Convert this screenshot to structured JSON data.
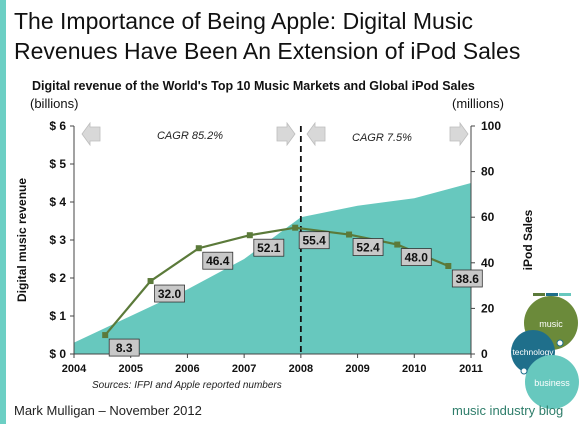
{
  "title": "The Importance of Being Apple: Digital Music Revenues Have Been An Extension of iPod Sales",
  "colors": {
    "area": "#67c8be",
    "line": "#5b7a3a",
    "label_bg": "#c8c8c8",
    "accent": "#6ccfc4"
  },
  "chart_data": {
    "type": "area",
    "title": "Digital revenue of the World's Top 10 Music Markets and Global iPod Sales",
    "left_unit": "(billions)",
    "right_unit": "(millions)",
    "xlabel": "",
    "ylabel_left": "Digital music revenue",
    "ylabel_right": "iPod Sales",
    "x_ticks": [
      "2004",
      "2005",
      "2006",
      "2007",
      "2008",
      "2009",
      "2010",
      "2011"
    ],
    "xlim": [
      2004,
      2011
    ],
    "ylim_left": [
      0,
      6
    ],
    "ylim_right": [
      0,
      100
    ],
    "y_ticks_left": [
      "$ 0",
      "$ 1",
      "$ 2",
      "$ 3",
      "$ 4",
      "$ 5",
      "$ 6"
    ],
    "y_ticks_right": [
      "0",
      "20",
      "40",
      "60",
      "80",
      "100"
    ],
    "revenue_area": {
      "axis": "left",
      "x": [
        2004,
        2005,
        2006,
        2007,
        2008,
        2009,
        2010,
        2011
      ],
      "values": [
        0.3,
        1.0,
        1.7,
        2.5,
        3.6,
        3.9,
        4.1,
        4.5
      ]
    },
    "ipod_line": {
      "axis": "right",
      "x": [
        2004.55,
        2005.35,
        2006.2,
        2007.1,
        2007.9,
        2008.85,
        2009.7,
        2010.6
      ],
      "values": [
        8.3,
        32.0,
        46.4,
        52.1,
        55.4,
        52.4,
        48.0,
        38.6
      ],
      "labels": [
        "8.3",
        "32.0",
        "46.4",
        "52.1",
        "55.4",
        "52.4",
        "48.0",
        "38.6"
      ]
    },
    "divider_year": 2008,
    "annotations": {
      "cagr_left": "CAGR 85.2%",
      "cagr_right": "CAGR 7.5%"
    },
    "grid": false
  },
  "source": "Sources: IFPI and Apple reported numbers",
  "footer": {
    "author": "Mark Mulligan – November 2012",
    "blog": "music industry blog"
  },
  "logo": {
    "circle1": "music",
    "circle2": "technology",
    "circle3": "business"
  }
}
